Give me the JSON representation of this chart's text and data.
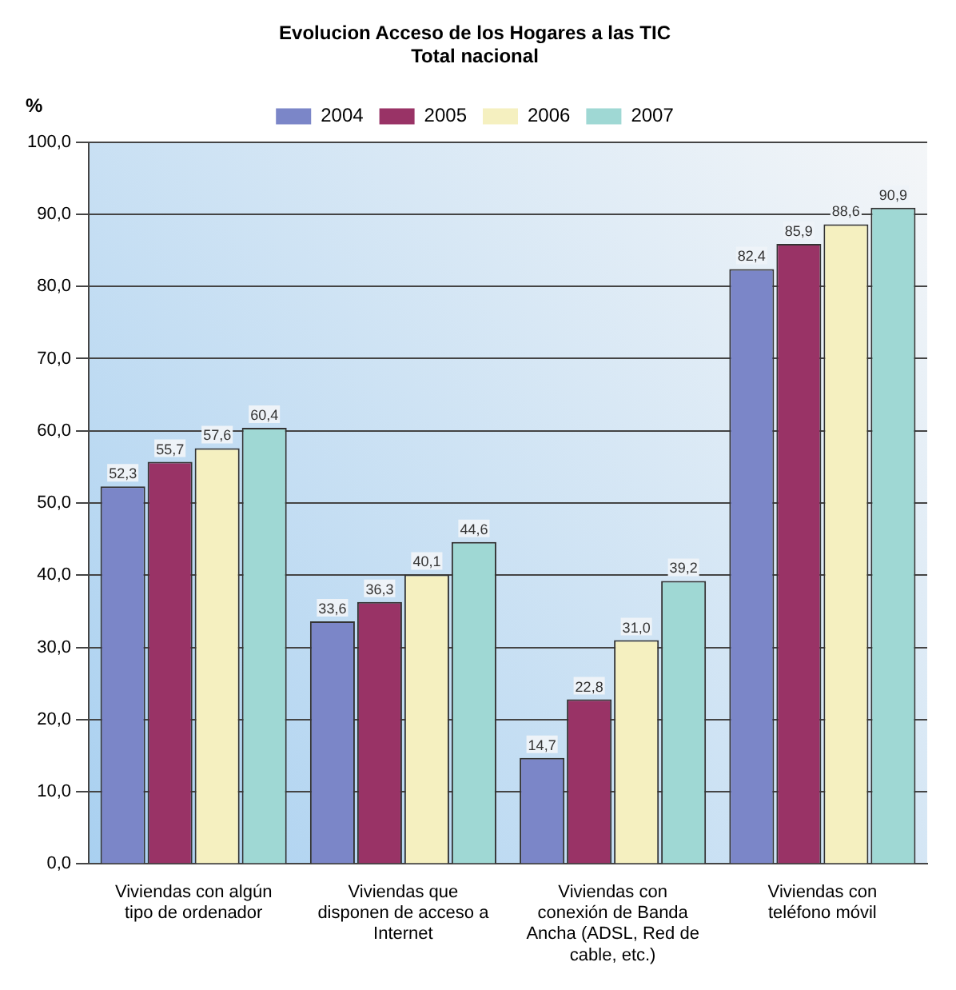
{
  "chart_data": {
    "type": "bar",
    "title": "Evolucion Acceso de los Hogares a las TIC",
    "subtitle": "Total nacional",
    "ylabel": "%",
    "categories": [
      "Viviendas con algún tipo de ordenador",
      "Viviendas que disponen de acceso a Internet",
      "Viviendas con conexión de Banda Ancha (ADSL, Red de cable, etc.)",
      "Viviendas con teléfono móvil"
    ],
    "series": [
      {
        "name": "2004",
        "color": "#7b86c8",
        "values": [
          52.3,
          33.6,
          14.7,
          82.4
        ],
        "value_labels": [
          "52,3",
          "33,6",
          "14,7",
          "82,4"
        ]
      },
      {
        "name": "2005",
        "color": "#993366",
        "values": [
          55.7,
          36.3,
          22.8,
          85.9
        ],
        "value_labels": [
          "55,7",
          "36,3",
          "22,8",
          "85,9"
        ]
      },
      {
        "name": "2006",
        "color": "#f5f0c0",
        "values": [
          57.6,
          40.1,
          31.0,
          88.6
        ],
        "value_labels": [
          "57,6",
          "40,1",
          "31,0",
          "88,6"
        ]
      },
      {
        "name": "2007",
        "color": "#9fd8d4",
        "values": [
          60.4,
          44.6,
          39.2,
          90.9
        ],
        "value_labels": [
          "60,4",
          "44,6",
          "39,2",
          "90,9"
        ]
      }
    ],
    "ylim": [
      0,
      100
    ],
    "yticks": [
      {
        "value": 0,
        "label": "0,0"
      },
      {
        "value": 10,
        "label": "10,0"
      },
      {
        "value": 20,
        "label": "20,0"
      },
      {
        "value": 30,
        "label": "30,0"
      },
      {
        "value": 40,
        "label": "40,0"
      },
      {
        "value": 50,
        "label": "50,0"
      },
      {
        "value": 60,
        "label": "60,0"
      },
      {
        "value": 70,
        "label": "70,0"
      },
      {
        "value": 80,
        "label": "80,0"
      },
      {
        "value": 90,
        "label": "90,0"
      },
      {
        "value": 100,
        "label": "100,0"
      }
    ],
    "grid": "y",
    "legend": "top"
  }
}
